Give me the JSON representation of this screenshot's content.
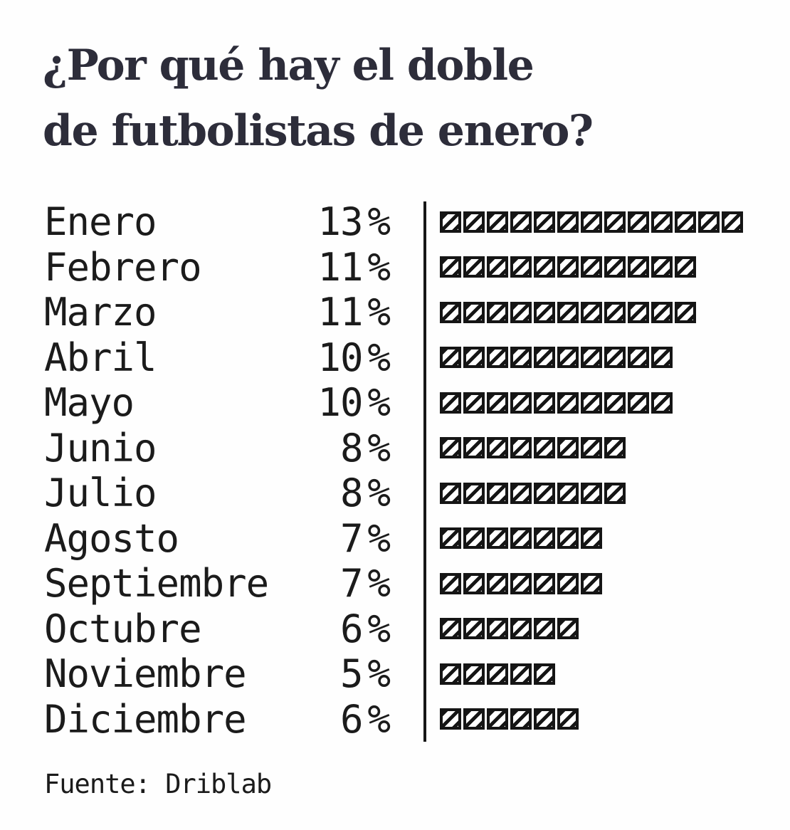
{
  "title": {
    "line1": "¿Por qué hay el doble",
    "line2": "de futbolistas de enero?"
  },
  "chart_data": {
    "type": "bar",
    "subtype": "pictogram",
    "title": "¿Por qué hay el doble de futbolistas de enero?",
    "categories": [
      "Enero",
      "Febrero",
      "Marzo",
      "Abril",
      "Mayo",
      "Junio",
      "Julio",
      "Agosto",
      "Septiembre",
      "Octubre",
      "Noviembre",
      "Diciembre"
    ],
    "values": [
      13,
      11,
      11,
      10,
      10,
      8,
      8,
      7,
      7,
      6,
      5,
      6
    ],
    "unit": "%",
    "block_value_percent": 1,
    "xlabel": "",
    "ylabel": "",
    "value_range": [
      0,
      13
    ],
    "legend": "none",
    "grid": false,
    "source": "Fuente: Driblab"
  },
  "footer": {
    "source": "Fuente: Driblab"
  },
  "colors": {
    "title": "#2d2d3a",
    "text": "#1b1b1b",
    "block_stroke": "#151515",
    "block_fill": "#ffffff",
    "background": "#fefefe",
    "divider": "#161616"
  }
}
